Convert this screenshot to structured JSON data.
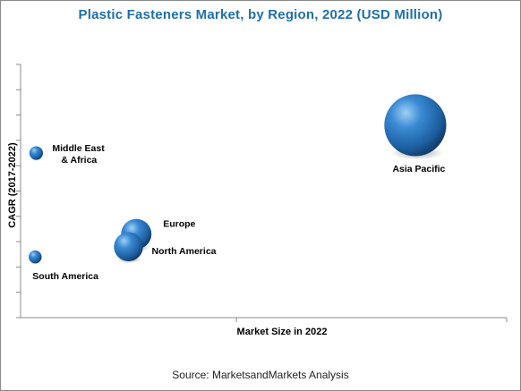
{
  "source_note": "Source: MarketsandMarkets Analysis",
  "chart_data": {
    "type": "scatter",
    "variant": "bubble",
    "title": "Plastic Fasteners Market, by Region, 2022 (USD Million)",
    "xlabel": "Market Size in 2022",
    "ylabel": "CAGR (2017-2022)",
    "x_ticks": "unlabeled",
    "y_ticks": "unlabeled",
    "grid": false,
    "legend": "none",
    "bubble_color": "#2f78c4",
    "points": [
      {
        "label": [
          "Asia Pacific"
        ],
        "x": 0.812,
        "y": 0.76,
        "size": 0.85
      },
      {
        "label": [
          "Middle East",
          "& Africa"
        ],
        "x": 0.032,
        "y": 0.65,
        "size": 0.1
      },
      {
        "label": [
          "Europe"
        ],
        "x": 0.238,
        "y": 0.33,
        "size": 0.36
      },
      {
        "label": [
          "North America"
        ],
        "x": 0.222,
        "y": 0.28,
        "size": 0.34
      },
      {
        "label": [
          "South America"
        ],
        "x": 0.03,
        "y": 0.24,
        "size": 0.09
      }
    ]
  }
}
